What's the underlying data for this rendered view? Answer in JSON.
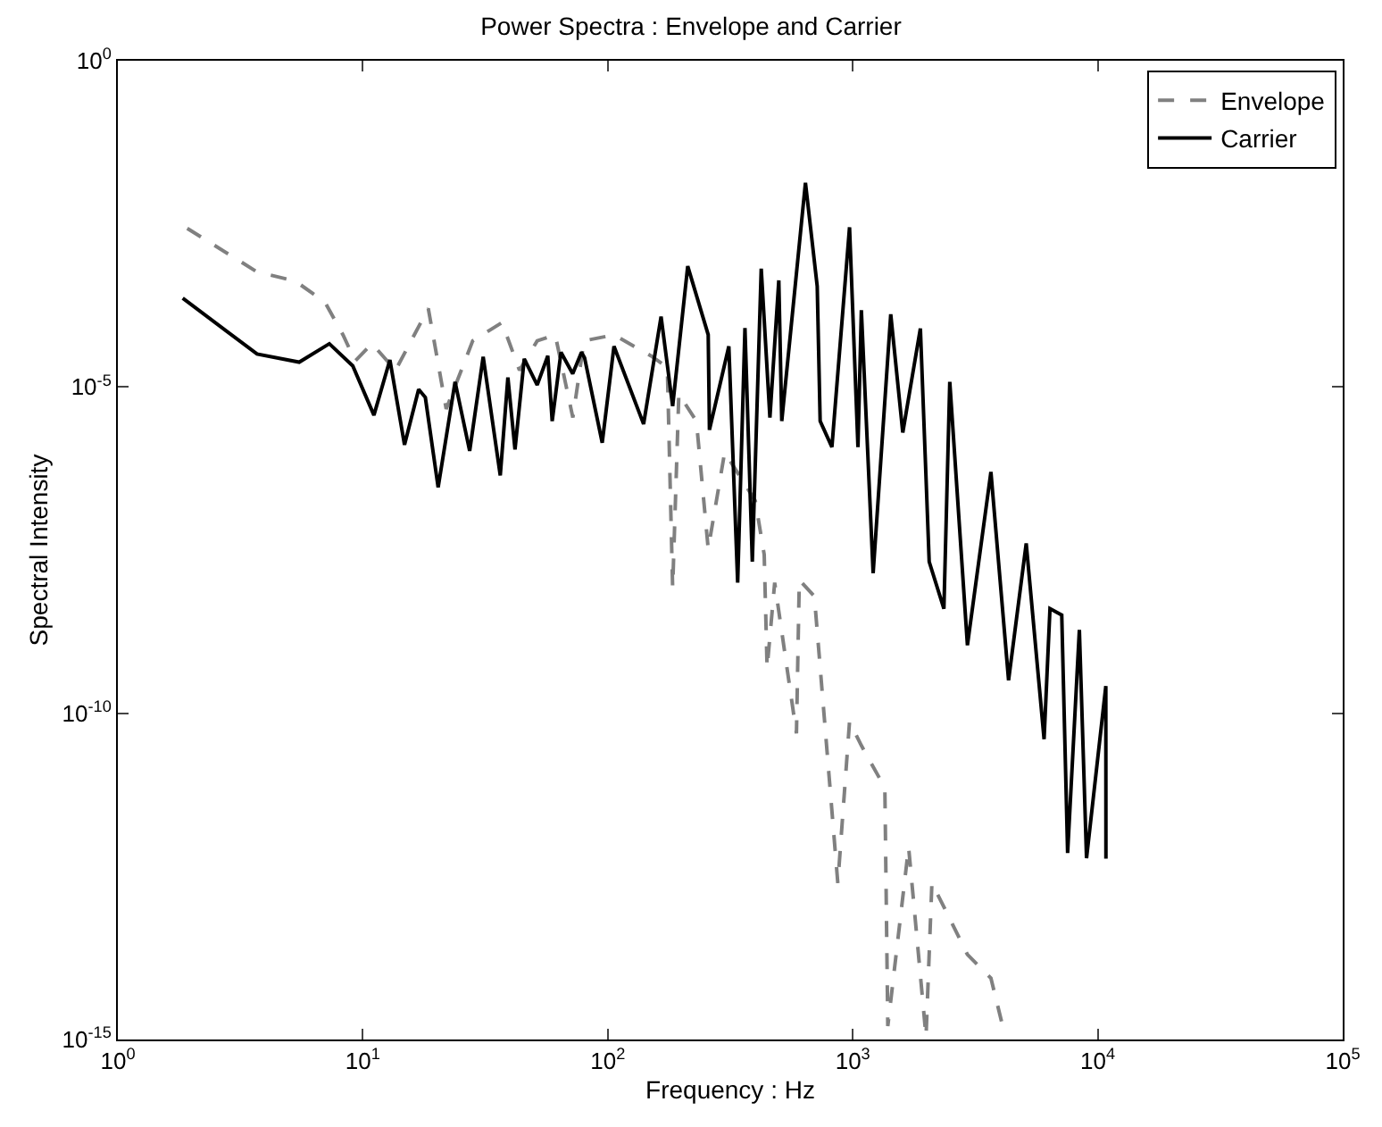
{
  "chart_data": {
    "type": "line",
    "title": "Power Spectra : Envelope and Carrier",
    "xlabel": "Frequency : Hz",
    "ylabel": "Spectral Intensity",
    "log": "xy",
    "xlim": [
      1,
      100000
    ],
    "ylim": [
      1e-15,
      1
    ],
    "xticks": [
      {
        "value": 1,
        "label": "10$^{0}$"
      },
      {
        "value": 10,
        "label": "10$^{1}$"
      },
      {
        "value": 100,
        "label": "10$^{2}$"
      },
      {
        "value": 1000,
        "label": "10$^{3}$"
      },
      {
        "value": 10000,
        "label": "10$^{4}$"
      },
      {
        "value": 100000,
        "label": "10$^{5}$"
      }
    ],
    "yticks": [
      {
        "value": 1e-15,
        "label": "10$^{-15}$"
      },
      {
        "value": 1e-10,
        "label": "10$^{-10}$"
      },
      {
        "value": 1e-05,
        "label": "10$^{-5}$"
      },
      {
        "value": 1,
        "label": "10$^{0}$"
      }
    ],
    "legend": "top right",
    "marker": "none",
    "series": [
      {
        "name": "Envelope",
        "color": "#808080",
        "line_style": "dashed",
        "x": [
          1.92,
          3.7,
          5.3,
          7.0,
          8.3,
          9.3,
          10.9,
          13.6,
          18.5,
          21.9,
          28.1,
          37,
          43.6,
          51.5,
          61,
          72,
          80,
          106,
          150,
          175,
          184,
          195,
          230,
          257,
          300,
          400,
          435,
          447,
          480,
          589,
          605,
          697,
          869,
          970,
          1084,
          1352,
          1390,
          1690,
          1991,
          2104,
          2489,
          2938,
          3664,
          4093
        ],
        "values": [
          0.0027,
          0.00058,
          0.00042,
          0.0002,
          6.3e-05,
          2.5e-05,
          4.6e-05,
          1.8e-05,
          0.00016,
          4.6e-06,
          5.1e-05,
          9.7e-05,
          1.8e-05,
          5.1e-05,
          6.3e-05,
          3.4e-06,
          5.1e-05,
          6.3e-05,
          3e-05,
          2e-05,
          8.3e-09,
          7.8e-06,
          3e-06,
          3.3e-08,
          1e-06,
          1.8e-07,
          2.7e-08,
          4.9e-10,
          1e-08,
          4.9e-11,
          1.1e-08,
          6.2e-09,
          2.5e-13,
          7.4e-11,
          3.2e-11,
          7.2e-12,
          1.6e-15,
          8.9e-13,
          1.1e-15,
          2.5e-13,
          7.1e-14,
          2e-14,
          8.7e-15,
          1.6e-15
        ]
      },
      {
        "name": "Carrier",
        "color": "#000000",
        "line_style": "solid",
        "x": [
          1.84,
          3.7,
          5.5,
          7.3,
          9.1,
          11.1,
          12.9,
          14.8,
          16.9,
          18.0,
          20.3,
          23.8,
          27.3,
          31,
          36.4,
          39.1,
          41.8,
          45.6,
          51.5,
          56.9,
          59.3,
          64.4,
          71.9,
          78.1,
          80.4,
          94.9,
          106,
          140,
          165,
          184,
          212,
          257,
          260,
          312,
          339,
          363,
          389,
          423,
          459,
          499,
          513,
          641,
          716,
          736,
          822,
          970,
          1050,
          1084,
          1211,
          1429,
          1600,
          1888,
          2051,
          2355,
          2489,
          2938,
          3664,
          4325,
          5105,
          6039,
          6383,
          7129,
          7534,
          8414,
          9000,
          10790,
          10800
        ],
        "values": [
          0.00023,
          3.2e-05,
          2.4e-05,
          4.6e-05,
          2.1e-05,
          3.7e-06,
          2.6e-05,
          1.3e-06,
          9.2e-06,
          6.9e-06,
          2.9e-07,
          1.2e-05,
          1.05e-06,
          2.9e-05,
          4.4e-07,
          1.4e-05,
          1.1e-06,
          2.7e-05,
          1.07e-05,
          3e-05,
          3e-06,
          3.4e-05,
          1.6e-05,
          3.4e-05,
          2.8e-05,
          1.4e-06,
          4.2e-05,
          2.7e-06,
          0.00012,
          5.1e-06,
          0.00071,
          6.3e-05,
          2.2e-06,
          4.2e-05,
          1e-08,
          8e-05,
          2.1e-08,
          0.00065,
          3.4e-06,
          0.00043,
          3e-06,
          0.0135,
          0.00035,
          3e-06,
          1.2e-06,
          0.0028,
          1.2e-06,
          0.00015,
          1.4e-08,
          0.00013,
          2e-06,
          7.9e-05,
          2.1e-08,
          4e-09,
          1.2e-05,
          1.1e-09,
          5e-07,
          3.2e-10,
          4e-08,
          4e-11,
          4e-09,
          3.2e-09,
          7.2e-13,
          1.9e-09,
          6e-13,
          2.6e-10,
          5.9e-13
        ]
      }
    ]
  }
}
